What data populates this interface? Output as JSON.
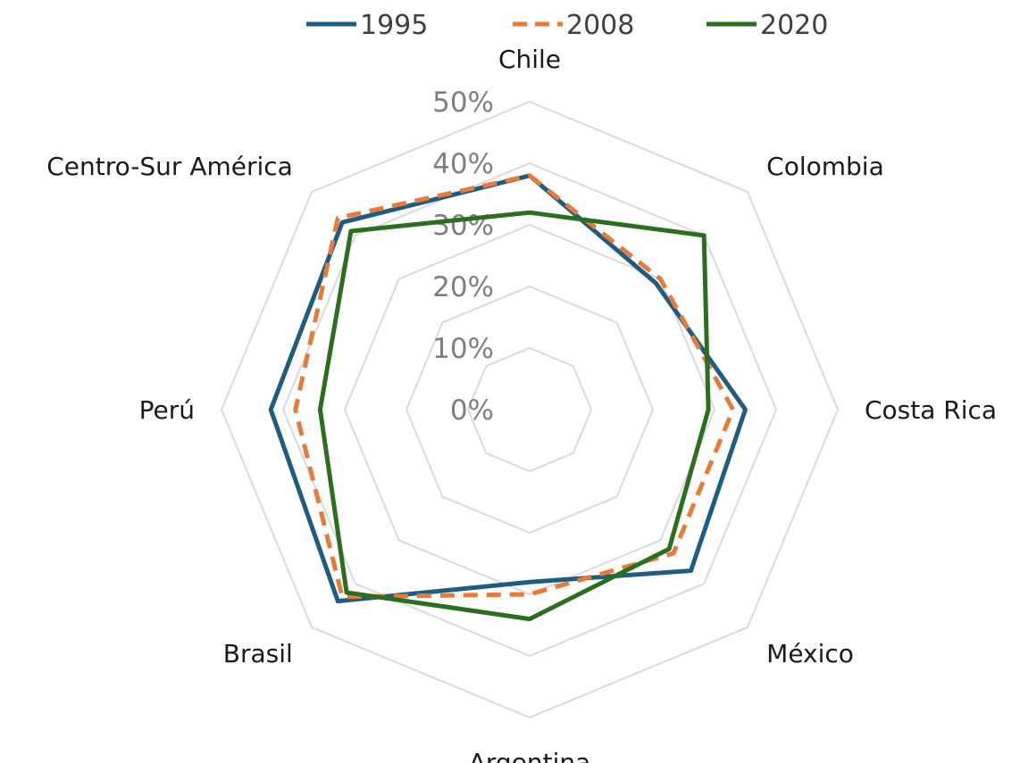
{
  "chart_data": {
    "type": "radar",
    "categories": [
      "Chile",
      "Colombia",
      "Costa Rica",
      "México",
      "Argentina",
      "Brasil",
      "Perú",
      "Centro-Sur América"
    ],
    "series": [
      {
        "name": "1995",
        "color": "#1f5c82",
        "dash": "solid",
        "values": [
          38,
          29,
          35,
          37,
          28,
          44,
          42,
          43
        ]
      },
      {
        "name": "2008",
        "color": "#e87a38",
        "dash": "dashed",
        "values": [
          38,
          30,
          33,
          33,
          30,
          43,
          38,
          44
        ]
      },
      {
        "name": "2020",
        "color": "#2a6e1e",
        "dash": "solid",
        "values": [
          32,
          40,
          29,
          32,
          34,
          42,
          34,
          41
        ]
      }
    ],
    "r_ticks": [
      "0%",
      "10%",
      "20%",
      "30%",
      "40%",
      "50%"
    ],
    "r_range": [
      0,
      50
    ],
    "grid": true,
    "legend_position": "top"
  }
}
